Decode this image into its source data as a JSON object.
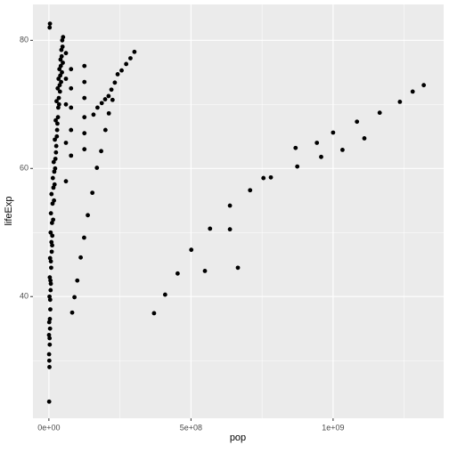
{
  "chart_data": {
    "type": "scatter",
    "x_label": "pop",
    "y_label": "lifeExp",
    "color": "#000000",
    "grid": true,
    "xlim": [
      -56000000,
      1389000000
    ],
    "ylim": [
      21,
      85.6
    ],
    "xticks": [
      {
        "value": 0,
        "label": "0e+00"
      },
      {
        "value": 500000000,
        "label": "5e+08"
      },
      {
        "value": 1000000000,
        "label": "1e+09"
      }
    ],
    "xminorticks": [
      250000000,
      750000000,
      1250000000
    ],
    "yticks": [
      40,
      60,
      80
    ],
    "yminorticks": [
      30,
      50,
      70
    ],
    "series": [
      {
        "name": "points",
        "color": "#000000",
        "x": [
          370000000,
          409000000,
          453000000,
          549000000,
          501000000,
          567000000,
          637000000,
          665000000,
          637000000,
          708000000,
          755000000,
          781000000,
          868000000,
          874000000,
          943000000,
          958000000,
          1000000000,
          1033000000,
          1084000000,
          1110000000,
          1164000000,
          1235000000,
          1280000000,
          1319000000,
          157000000,
          171000000,
          186000000,
          198000000,
          210000000,
          220000000,
          232000000,
          242000000,
          256000000,
          272000000,
          287000000,
          301000000,
          82000000,
          90000000,
          100000000,
          112000000,
          124000000,
          137000000,
          153000000,
          169000000,
          184000000,
          199000000,
          211000000,
          224000000,
          125000000,
          125000000,
          125000000,
          125000000,
          125000000,
          125000000,
          78000000,
          78000000,
          78000000,
          78000000,
          78000000,
          60000000,
          60000000,
          60000000,
          60000000,
          60000000,
          1000000,
          2000000,
          3000000,
          4000000,
          5000000,
          6000000,
          8000000,
          10000000,
          12000000,
          15000000,
          18000000,
          20000000,
          22000000,
          25000000,
          28000000,
          30000000,
          33000000,
          35000000,
          38000000,
          40000000,
          42000000,
          45000000,
          48000000,
          50000000,
          1500000,
          2500000,
          3500000,
          4500000,
          5500000,
          7000000,
          9000000,
          11000000,
          13000000,
          16000000,
          19000000,
          23000000,
          26000000,
          29000000,
          32000000,
          36000000,
          39000000,
          43000000,
          46000000,
          49000000,
          800000,
          1200000,
          2200000,
          3200000,
          4200000,
          6200000,
          7200000,
          9200000,
          14000000,
          17000000,
          21000000,
          24000000,
          27000000,
          31000000,
          34000000,
          37000000,
          41000000,
          44000000,
          47000000,
          2700000,
          500000,
          3800000,
          6800000,
          11500000
        ],
        "y": [
          37.4,
          40.3,
          43.6,
          44.0,
          47.3,
          50.6,
          50.5,
          44.5,
          54.2,
          56.6,
          58.5,
          58.6,
          63.2,
          60.3,
          64.0,
          61.8,
          65.6,
          62.9,
          67.3,
          64.7,
          68.7,
          70.4,
          72.0,
          73.0,
          68.4,
          69.5,
          70.2,
          70.8,
          71.3,
          72.3,
          73.4,
          74.7,
          75.3,
          76.3,
          77.2,
          78.2,
          37.5,
          39.9,
          42.5,
          46.1,
          49.2,
          52.7,
          56.2,
          60.1,
          62.7,
          66.0,
          68.6,
          70.7,
          63.0,
          65.5,
          68.0,
          71.0,
          73.5,
          76.0,
          62.0,
          66.0,
          69.5,
          72.5,
          75.5,
          58.0,
          64.0,
          70.0,
          74.0,
          78.0,
          23.6,
          29.0,
          32.5,
          35.0,
          38.0,
          41.0,
          44.5,
          47.0,
          49.5,
          52.0,
          55.0,
          57.5,
          60.0,
          62.5,
          65.0,
          67.0,
          69.5,
          71.0,
          73.0,
          74.5,
          76.0,
          77.5,
          79.0,
          80.5,
          30.0,
          33.5,
          36.5,
          39.5,
          42.5,
          45.5,
          48.5,
          51.5,
          54.5,
          57.0,
          59.5,
          61.5,
          63.5,
          66.0,
          68.0,
          70.0,
          72.0,
          73.5,
          75.0,
          76.5,
          31.0,
          36.0,
          40.0,
          43.0,
          46.0,
          50.0,
          53.0,
          56.0,
          58.5,
          61.0,
          64.5,
          67.5,
          70.5,
          72.5,
          74.0,
          75.5,
          77.0,
          78.5,
          80.0,
          82.0,
          34.0,
          82.6,
          42.0,
          48.0
        ]
      }
    ]
  }
}
